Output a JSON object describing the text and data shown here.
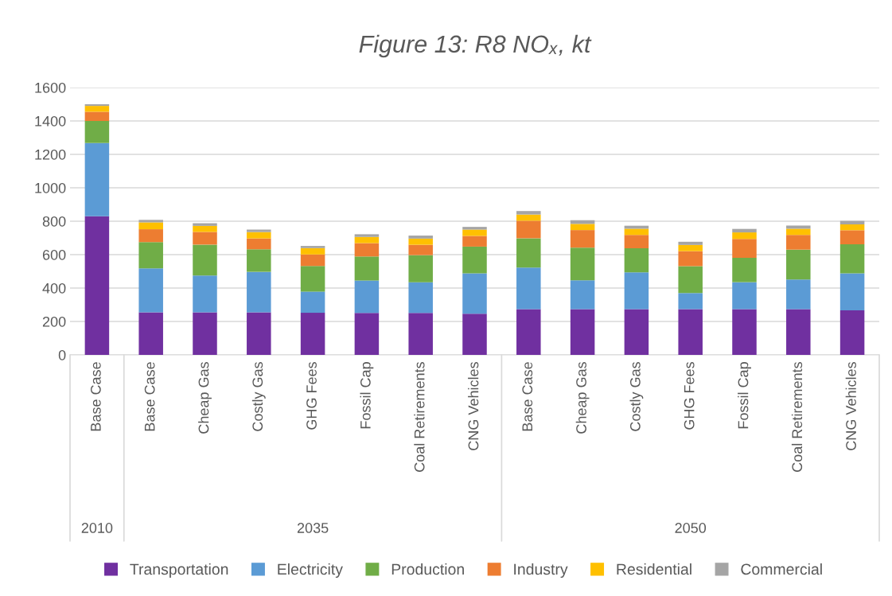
{
  "chart_data": {
    "type": "bar",
    "title": "Figure 13: R8 NOₓ, kt",
    "categories": [
      "Base Case",
      "Base Case",
      "Cheap Gas",
      "Costly Gas",
      "GHG Fees",
      "Fossil Cap",
      "Coal Retirements",
      "CNG Vehicles",
      "Base Case",
      "Cheap Gas",
      "Costly Gas",
      "GHG Fees",
      "Fossil Cap",
      "Coal Retirements",
      "CNG Vehicles"
    ],
    "annotations": [
      "2010",
      "2035",
      "2050"
    ],
    "stacked": true,
    "series": [
      {
        "name": "Transportation",
        "color": "#7030a0",
        "values": [
          830,
          255,
          255,
          255,
          252,
          251,
          251,
          246,
          274,
          274,
          274,
          274,
          274,
          274,
          267
        ]
      },
      {
        "name": "Electricity",
        "color": "#5b9bd5",
        "values": [
          438,
          263,
          220,
          242,
          127,
          194,
          183,
          242,
          249,
          172,
          220,
          96,
          161,
          177,
          221
        ]
      },
      {
        "name": "Production",
        "color": "#70ad47",
        "values": [
          132,
          157,
          185,
          135,
          153,
          144,
          163,
          160,
          175,
          196,
          144,
          161,
          146,
          179,
          174
        ]
      },
      {
        "name": "Industry",
        "color": "#ed7d31",
        "values": [
          55,
          77,
          76,
          65,
          69,
          80,
          62,
          64,
          105,
          105,
          80,
          90,
          113,
          88,
          84
        ]
      },
      {
        "name": "Residential",
        "color": "#ffc000",
        "values": [
          35,
          41,
          36,
          38,
          38,
          37,
          37,
          38,
          37,
          37,
          37,
          37,
          39,
          37,
          35
        ]
      },
      {
        "name": "Commercial",
        "color": "#a5a5a5",
        "values": [
          10,
          15,
          16,
          15,
          13,
          16,
          18,
          16,
          21,
          22,
          18,
          19,
          21,
          19,
          21
        ]
      }
    ],
    "ylim": [
      0,
      1600
    ],
    "yticks": [
      0,
      200,
      400,
      600,
      800,
      1000,
      1200,
      1400,
      1600
    ],
    "grid": "y",
    "legend": "bottom"
  }
}
